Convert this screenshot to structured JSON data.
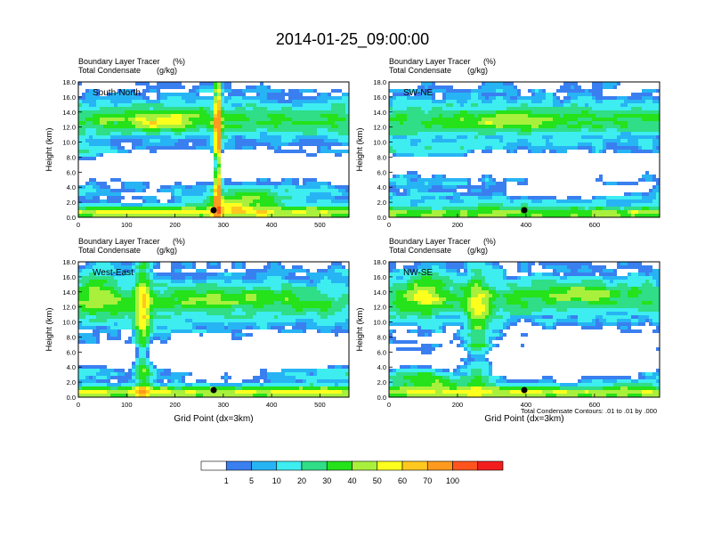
{
  "figure": {
    "title": "2014-01-25_09:00:00",
    "footnote": "Total Condensate Contours: .01 to .01 by .000"
  },
  "palette": {
    "white": "#ffffff",
    "blue": "#3a7ff0",
    "sky": "#27b4f4",
    "cyan": "#3dedf0",
    "seagreen": "#2fde86",
    "green": "#25e21a",
    "lime": "#a8f03c",
    "yellow": "#ffff1e",
    "gold": "#ffc81e",
    "orange": "#ff9a1e",
    "redorange": "#ff541e",
    "red": "#f21e1e"
  },
  "chart_data": [
    {
      "type": "heatmap",
      "label": "South-North",
      "subtitle_1": "Boundary Layer Tracer",
      "subtitle_1_units": "(%)",
      "subtitle_2": "Total Condensate",
      "subtitle_2_units": "(g/kg)",
      "ylabel": "Height (km)",
      "xlabel": "",
      "xlim": [
        0,
        560
      ],
      "ylim": [
        0,
        18
      ],
      "xticks": [
        "0",
        "100",
        "200",
        "300",
        "400",
        "500"
      ],
      "yticks": [
        "0.0",
        "2.0",
        "4.0",
        "6.0",
        "8.0",
        "10.0",
        "12.0",
        "14.0",
        "16.0",
        "18.0"
      ],
      "marker_x": 280
    },
    {
      "type": "heatmap",
      "label": "SW-NE",
      "subtitle_1": "Boundary Layer Tracer",
      "subtitle_1_units": "(%)",
      "subtitle_2": "Total Condensate",
      "subtitle_2_units": "(g/kg)",
      "ylabel": "Height (km)",
      "xlabel": "",
      "xlim": [
        0,
        790
      ],
      "ylim": [
        0,
        18
      ],
      "xticks": [
        "0",
        "200",
        "400",
        "600"
      ],
      "yticks": [
        "0.0",
        "2.0",
        "4.0",
        "6.0",
        "8.0",
        "10.0",
        "12.0",
        "14.0",
        "16.0",
        "18.0"
      ],
      "marker_x": 395
    },
    {
      "type": "heatmap",
      "label": "West-East",
      "subtitle_1": "Boundary Layer Tracer",
      "subtitle_1_units": "(%)",
      "subtitle_2": "Total Condensate",
      "subtitle_2_units": "(g/kg)",
      "ylabel": "Height (km)",
      "xlabel": "Grid Point (dx=3km)",
      "xlim": [
        0,
        560
      ],
      "ylim": [
        0,
        18
      ],
      "xticks": [
        "0",
        "100",
        "200",
        "300",
        "400",
        "500"
      ],
      "yticks": [
        "0.0",
        "2.0",
        "4.0",
        "6.0",
        "8.0",
        "10.0",
        "12.0",
        "14.0",
        "16.0",
        "18.0"
      ],
      "marker_x": 280
    },
    {
      "type": "heatmap",
      "label": "NW-SE",
      "subtitle_1": "Boundary Layer Tracer",
      "subtitle_1_units": "(%)",
      "subtitle_2": "Total Condensate",
      "subtitle_2_units": "(g/kg)",
      "ylabel": "Height (km)",
      "xlabel": "Grid Point (dx=3km)",
      "xlim": [
        0,
        790
      ],
      "ylim": [
        0,
        18
      ],
      "xticks": [
        "0",
        "200",
        "400",
        "600"
      ],
      "yticks": [
        "0.0",
        "2.0",
        "4.0",
        "6.0",
        "8.0",
        "10.0",
        "12.0",
        "14.0",
        "16.0",
        "18.0"
      ],
      "marker_x": 395
    }
  ],
  "colorbar": {
    "type": "colorbar",
    "units": "%",
    "labels": [
      "1",
      "5",
      "10",
      "20",
      "30",
      "40",
      "50",
      "60",
      "70",
      "100"
    ],
    "colors": [
      "#ffffff",
      "#3a7ff0",
      "#27b4f4",
      "#3dedf0",
      "#2fde86",
      "#25e21a",
      "#a8f03c",
      "#ffff1e",
      "#ffc81e",
      "#ff9a1e",
      "#ff541e",
      "#f21e1e"
    ]
  }
}
